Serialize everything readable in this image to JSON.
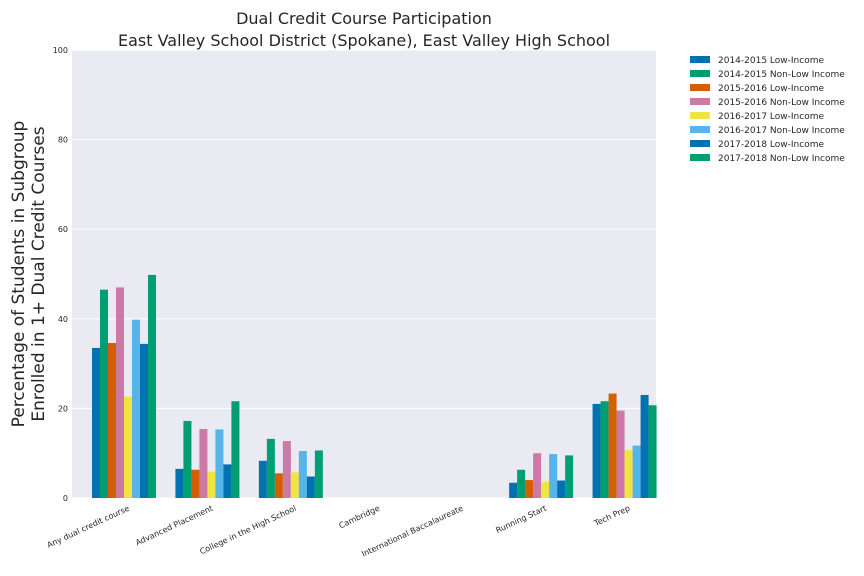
{
  "chart_data": {
    "type": "bar",
    "title": [
      "Dual Credit Course Participation",
      "East Valley School District (Spokane), East Valley High School"
    ],
    "ylabel": [
      "Percentage of Students in Subgroup",
      "Enrolled in 1+ Dual Credit Courses"
    ],
    "xlabel": "",
    "ylim": [
      0,
      100
    ],
    "yticks": [
      0,
      20,
      40,
      60,
      80,
      100
    ],
    "grid": true,
    "legend_position": "outside-top-right",
    "categories": [
      "Any dual credit course",
      "Advanced Placement",
      "College in the High School",
      "Cambridge",
      "International Baccalaureate",
      "Running Start",
      "Tech Prep"
    ],
    "series": [
      {
        "name": "2014-2015 Low-Income",
        "color": "#0072b2",
        "values": [
          33.5,
          6.5,
          8.3,
          0,
          0,
          3.4,
          21.0
        ]
      },
      {
        "name": "2014-2015 Non-Low Income",
        "color": "#009e73",
        "values": [
          46.5,
          17.2,
          13.2,
          0,
          0,
          6.3,
          21.6
        ]
      },
      {
        "name": "2015-2016 Low-Income",
        "color": "#d55e00",
        "values": [
          34.6,
          6.3,
          5.5,
          0,
          0,
          4.0,
          23.3
        ]
      },
      {
        "name": "2015-2016 Non-Low Income",
        "color": "#cc79a7",
        "values": [
          47.0,
          15.4,
          12.7,
          0,
          0,
          10.0,
          19.5
        ]
      },
      {
        "name": "2016-2017 Low-Income",
        "color": "#f0e442",
        "values": [
          22.6,
          5.9,
          5.7,
          0,
          0,
          3.6,
          10.7
        ]
      },
      {
        "name": "2016-2017 Non-Low Income",
        "color": "#56b4e9",
        "values": [
          39.8,
          15.3,
          10.5,
          0,
          0,
          9.8,
          11.7
        ]
      },
      {
        "name": "2017-2018 Low-Income",
        "color": "#0072b2",
        "values": [
          34.4,
          7.5,
          4.8,
          0,
          0,
          3.9,
          23.0
        ]
      },
      {
        "name": "2017-2018 Non-Low Income",
        "color": "#009e73",
        "values": [
          49.8,
          21.6,
          10.6,
          0,
          0,
          9.5,
          20.7
        ]
      }
    ]
  },
  "colors": {
    "plot_background": "#eaeaf2",
    "grid": "#ffffff"
  }
}
